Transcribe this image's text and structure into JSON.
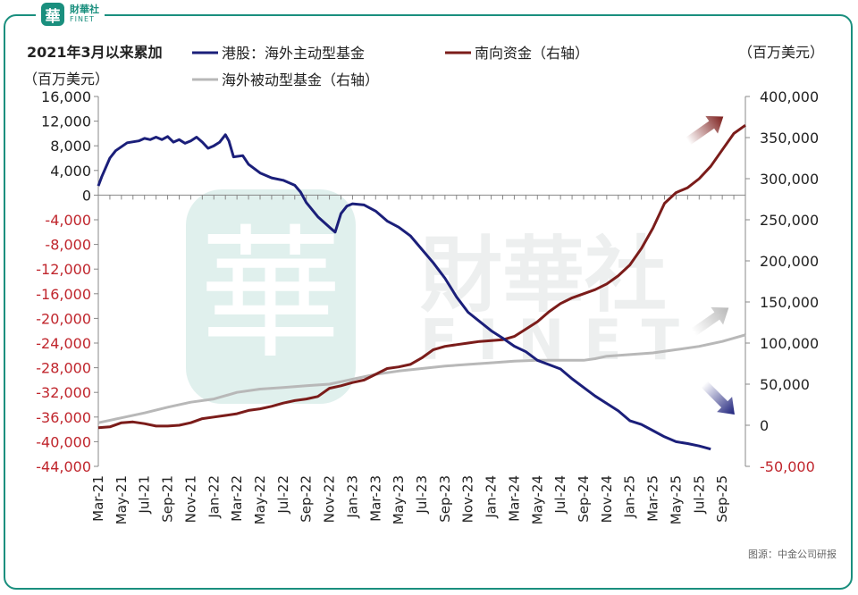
{
  "brand": {
    "logo_cn": "財華社",
    "logo_en": "FINET",
    "badge_char": "華",
    "accent": "#1a8f7e"
  },
  "watermark": {
    "text_cn": "財華社",
    "text_en": "FINET",
    "badge_char": "華"
  },
  "chart_data": {
    "type": "line",
    "title": "2021年3月以来累加",
    "left_unit": "（百万美元）",
    "right_unit": "（百万美元）",
    "source": "图源：中金公司研报",
    "x_tick_labels": [
      "Mar-21",
      "May-21",
      "Jul-21",
      "Sep-21",
      "Nov-21",
      "Jan-22",
      "Mar-22",
      "May-22",
      "Jul-22",
      "Sep-22",
      "Nov-22",
      "Jan-23",
      "Mar-23",
      "May-23",
      "Jul-23",
      "Sep-23",
      "Nov-23",
      "Jan-24",
      "Mar-24",
      "May-24",
      "Jul-24",
      "Sep-24",
      "Nov-24",
      "Jan-25",
      "Mar-25",
      "May-25",
      "Jul-25",
      "Sep-25"
    ],
    "y_left": {
      "min": -44000,
      "max": 16000,
      "step": 4000,
      "tick_labels": [
        "16,000",
        "12,000",
        "8,000",
        "4,000",
        "0",
        "-4,000",
        "-8,000",
        "-12,000",
        "-16,000",
        "-20,000",
        "-24,000",
        "-28,000",
        "-32,000",
        "-36,000",
        "-40,000",
        "-44,000"
      ],
      "negative_color": "#c0262d"
    },
    "y_right": {
      "min": -50000,
      "max": 400000,
      "step": 50000,
      "tick_labels": [
        "400,000",
        "350,000",
        "300,000",
        "250,000",
        "200,000",
        "150,000",
        "100,000",
        "50,000",
        "0",
        "-50,000"
      ],
      "negative_color": "#c0262d"
    },
    "series": [
      {
        "name": "港股：海外主动型基金",
        "axis": "left",
        "color": "#1b1f7a",
        "points": [
          [
            0,
            1500
          ],
          [
            0.3,
            3000
          ],
          [
            1,
            6000
          ],
          [
            1.5,
            7200
          ],
          [
            2.5,
            8500
          ],
          [
            3.5,
            8800
          ],
          [
            4,
            9200
          ],
          [
            4.5,
            9000
          ],
          [
            5,
            9400
          ],
          [
            5.5,
            9000
          ],
          [
            6,
            9500
          ],
          [
            6.5,
            8600
          ],
          [
            7,
            9000
          ],
          [
            7.5,
            8400
          ],
          [
            8,
            8800
          ],
          [
            8.5,
            9400
          ],
          [
            9,
            8600
          ],
          [
            9.5,
            7600
          ],
          [
            10,
            8000
          ],
          [
            10.5,
            8600
          ],
          [
            11,
            9800
          ],
          [
            11.3,
            8800
          ],
          [
            11.7,
            6200
          ],
          [
            12.5,
            6400
          ],
          [
            13,
            5000
          ],
          [
            14,
            3600
          ],
          [
            15,
            2800
          ],
          [
            16,
            2400
          ],
          [
            17,
            1600
          ],
          [
            17.5,
            500
          ],
          [
            18,
            -1200
          ],
          [
            19,
            -3500
          ],
          [
            20,
            -5200
          ],
          [
            20.5,
            -6000
          ],
          [
            21,
            -3000
          ],
          [
            21.5,
            -1800
          ],
          [
            22,
            -1400
          ],
          [
            23,
            -1600
          ],
          [
            24,
            -2600
          ],
          [
            25,
            -4200
          ],
          [
            26,
            -5200
          ],
          [
            27,
            -6600
          ],
          [
            28,
            -8800
          ],
          [
            29,
            -11000
          ],
          [
            30,
            -13500
          ],
          [
            31,
            -16500
          ],
          [
            32,
            -19000
          ],
          [
            33,
            -20500
          ],
          [
            34,
            -22000
          ],
          [
            35,
            -23200
          ],
          [
            36,
            -24500
          ],
          [
            37,
            -25400
          ],
          [
            38,
            -26800
          ],
          [
            39,
            -27500
          ],
          [
            40,
            -28200
          ],
          [
            41,
            -29800
          ],
          [
            42,
            -31200
          ],
          [
            43,
            -32600
          ],
          [
            44,
            -33800
          ],
          [
            45,
            -35000
          ],
          [
            46,
            -36600
          ],
          [
            47,
            -37200
          ],
          [
            48,
            -38200
          ],
          [
            49,
            -39200
          ],
          [
            50,
            -40000
          ],
          [
            51,
            -40300
          ],
          [
            52,
            -40700
          ],
          [
            53,
            -41200
          ]
        ]
      },
      {
        "name": "南向资金（右轴）",
        "axis": "right",
        "color": "#7b1c1a",
        "points": [
          [
            0,
            -3000
          ],
          [
            1,
            -2000
          ],
          [
            2,
            3000
          ],
          [
            3,
            4000
          ],
          [
            4,
            2000
          ],
          [
            5,
            -1000
          ],
          [
            6,
            -1000
          ],
          [
            7,
            0
          ],
          [
            8,
            3000
          ],
          [
            9,
            8000
          ],
          [
            10,
            10000
          ],
          [
            11,
            12000
          ],
          [
            12,
            14000
          ],
          [
            13,
            18000
          ],
          [
            14,
            20000
          ],
          [
            15,
            23000
          ],
          [
            16,
            27000
          ],
          [
            17,
            30000
          ],
          [
            18,
            32000
          ],
          [
            19,
            35000
          ],
          [
            20,
            45000
          ],
          [
            21,
            48000
          ],
          [
            22,
            52000
          ],
          [
            23,
            55000
          ],
          [
            24,
            62000
          ],
          [
            25,
            69000
          ],
          [
            26,
            71000
          ],
          [
            27,
            74000
          ],
          [
            28,
            82000
          ],
          [
            29,
            92000
          ],
          [
            30,
            96000
          ],
          [
            31,
            98000
          ],
          [
            32,
            100000
          ],
          [
            33,
            102000
          ],
          [
            34,
            103000
          ],
          [
            35,
            104000
          ],
          [
            36,
            108000
          ],
          [
            37,
            117000
          ],
          [
            38,
            126000
          ],
          [
            39,
            138000
          ],
          [
            40,
            148000
          ],
          [
            41,
            155000
          ],
          [
            42,
            160000
          ],
          [
            43,
            165000
          ],
          [
            44,
            172000
          ],
          [
            45,
            182000
          ],
          [
            46,
            195000
          ],
          [
            47,
            215000
          ],
          [
            48,
            240000
          ],
          [
            49,
            270000
          ],
          [
            50,
            283000
          ],
          [
            51,
            289000
          ],
          [
            52,
            300000
          ],
          [
            53,
            315000
          ],
          [
            54,
            335000
          ],
          [
            55,
            355000
          ],
          [
            56,
            365000
          ]
        ]
      },
      {
        "name": "海外被动型基金（右轴）",
        "axis": "right",
        "color": "#b8b8b8",
        "points": [
          [
            0,
            3000
          ],
          [
            2,
            9000
          ],
          [
            4,
            15000
          ],
          [
            6,
            22000
          ],
          [
            8,
            28000
          ],
          [
            10,
            32000
          ],
          [
            12,
            40000
          ],
          [
            14,
            44000
          ],
          [
            16,
            46000
          ],
          [
            18,
            48000
          ],
          [
            20,
            50000
          ],
          [
            22,
            56000
          ],
          [
            24,
            62000
          ],
          [
            26,
            66000
          ],
          [
            28,
            69000
          ],
          [
            30,
            72000
          ],
          [
            32,
            74000
          ],
          [
            34,
            76000
          ],
          [
            36,
            78000
          ],
          [
            38,
            79000
          ],
          [
            40,
            79000
          ],
          [
            42,
            79000
          ],
          [
            43,
            81000
          ],
          [
            44,
            84000
          ],
          [
            46,
            86000
          ],
          [
            48,
            88000
          ],
          [
            50,
            92000
          ],
          [
            52,
            96000
          ],
          [
            54,
            102000
          ],
          [
            56,
            110000
          ]
        ]
      }
    ],
    "annotations": {
      "arrows": [
        "up-red",
        "up-gray",
        "down-blue"
      ]
    }
  }
}
